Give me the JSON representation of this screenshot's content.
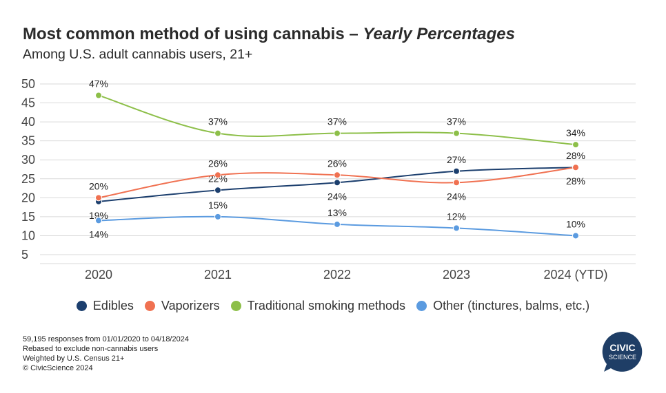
{
  "title": {
    "main": "Most common method of using cannabis – ",
    "italic": "Yearly Percentages"
  },
  "subtitle": "Among U.S. adult cannabis users, 21+",
  "footnotes": [
    "59,195 responses from 01/01/2020 to 04/18/2024",
    "Rebased to exclude non-cannabis users",
    "Weighted by U.S. Census 21+",
    "© CivicScience 2024"
  ],
  "logo": {
    "line1": "CIVIC",
    "line2": "SCIENCE",
    "color": "#1f3e66"
  },
  "chart_data": {
    "type": "line",
    "categories": [
      "2020",
      "2021",
      "2022",
      "2023",
      "2024 (YTD)"
    ],
    "ylim": [
      5,
      50
    ],
    "yticks": [
      5,
      10,
      15,
      20,
      25,
      30,
      35,
      40,
      45,
      50
    ],
    "grid": true,
    "legend_position": "bottom",
    "series": [
      {
        "name": "Edibles",
        "color": "#1c3f6e",
        "values": [
          19,
          22,
          24,
          27,
          28
        ],
        "labels": [
          "19%",
          "22%",
          "24%",
          "27%",
          "28%"
        ],
        "label_pos": [
          "below",
          "above",
          "below",
          "above",
          "above"
        ]
      },
      {
        "name": "Vaporizers",
        "color": "#f07151",
        "values": [
          20,
          26,
          26,
          24,
          28
        ],
        "labels": [
          "20%",
          "26%",
          "26%",
          "24%",
          "28%"
        ],
        "label_pos": [
          "above",
          "above",
          "above",
          "below",
          "below"
        ]
      },
      {
        "name": "Traditional smoking methods",
        "color": "#8dbf49",
        "values": [
          47,
          37,
          37,
          37,
          34
        ],
        "labels": [
          "47%",
          "37%",
          "37%",
          "37%",
          "34%"
        ],
        "label_pos": [
          "above",
          "above",
          "above",
          "above",
          "above"
        ]
      },
      {
        "name": "Other (tinctures, balms, etc.)",
        "color": "#5b9be0",
        "values": [
          14,
          15,
          13,
          12,
          10
        ],
        "labels": [
          "14%",
          "15%",
          "13%",
          "12%",
          "10%"
        ],
        "label_pos": [
          "below",
          "above",
          "above",
          "above",
          "above"
        ]
      }
    ]
  }
}
